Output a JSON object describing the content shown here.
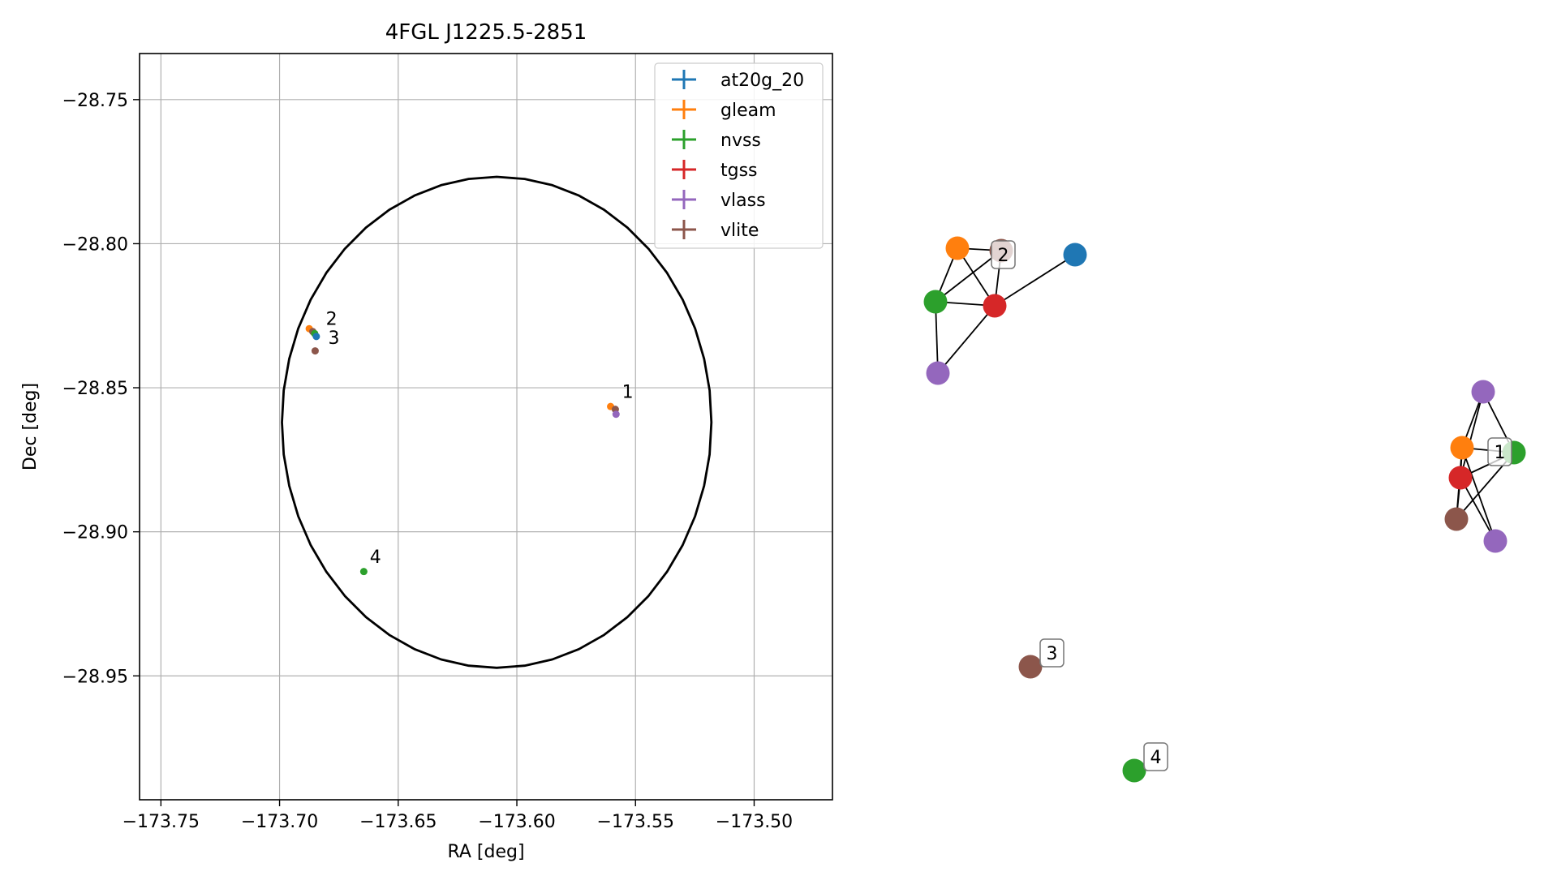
{
  "chart_data": [
    {
      "type": "scatter",
      "title": "4FGL J1225.5-2851",
      "xlabel": "RA [deg]",
      "ylabel": "Dec [deg]",
      "xlim": [
        -173.759,
        -173.467
      ],
      "ylim": [
        -28.993,
        -28.734
      ],
      "xticks": [
        -173.75,
        -173.7,
        -173.65,
        -173.6,
        -173.55,
        -173.5
      ],
      "xtick_labels": [
        "−173.75",
        "−173.70",
        "−173.65",
        "−173.60",
        "−173.55",
        "−173.50"
      ],
      "yticks": [
        -28.75,
        -28.8,
        -28.85,
        -28.9,
        -28.95
      ],
      "ytick_labels": [
        "−28.75",
        "−28.80",
        "−28.85",
        "−28.90",
        "−28.95"
      ],
      "grid": true,
      "legend_position": "top-right",
      "legend_items": [
        {
          "name": "at20g_20",
          "color": "#1f77b4"
        },
        {
          "name": "gleam",
          "color": "#ff7f0e"
        },
        {
          "name": "nvss",
          "color": "#2ca02c"
        },
        {
          "name": "tgss",
          "color": "#d62728"
        },
        {
          "name": "vlass",
          "color": "#9467bd"
        },
        {
          "name": "vlite",
          "color": "#8c564b"
        }
      ],
      "ellipse": {
        "center_ra": -173.6085,
        "center_dec": -28.862,
        "ra_semi_axis": 0.0905,
        "dec_semi_axis": 0.0852,
        "color": "#000000"
      },
      "points": [
        {
          "catalog": "gleam",
          "ra": -173.5605,
          "dec": -28.8565,
          "color": "#ff7f0e"
        },
        {
          "catalog": "vlite",
          "ra": -173.5585,
          "dec": -28.8575,
          "color": "#8c564b"
        },
        {
          "catalog": "vlass",
          "ra": -173.5582,
          "dec": -28.8592,
          "color": "#9467bd"
        },
        {
          "catalog": "gleam",
          "ra": -173.6875,
          "dec": -28.8295,
          "color": "#ff7f0e"
        },
        {
          "catalog": "vlite",
          "ra": -173.686,
          "dec": -28.8305,
          "color": "#8c564b"
        },
        {
          "catalog": "nvss",
          "ra": -173.6852,
          "dec": -28.8312,
          "color": "#2ca02c"
        },
        {
          "catalog": "at20g_20",
          "ra": -173.6845,
          "dec": -28.8322,
          "color": "#1f77b4"
        },
        {
          "catalog": "vlite",
          "ra": -173.685,
          "dec": -28.8372,
          "color": "#8c564b"
        },
        {
          "catalog": "nvss",
          "ra": -173.6645,
          "dec": -28.9138,
          "color": "#2ca02c"
        }
      ],
      "annotations": [
        {
          "text": "1",
          "ra": -173.5557,
          "dec": -28.8535
        },
        {
          "text": "2",
          "ra": -173.6805,
          "dec": -28.8282
        },
        {
          "text": "3",
          "ra": -173.6795,
          "dec": -28.8348
        },
        {
          "text": "4",
          "ra": -173.662,
          "dec": -28.9108
        }
      ]
    },
    {
      "type": "network",
      "nodes": [
        {
          "id": "g2",
          "catalog": "gleam",
          "color": "#ff7f0e"
        },
        {
          "id": "v2",
          "catalog": "vlite",
          "color": "#8c564b"
        },
        {
          "id": "a2",
          "catalog": "at20g_20",
          "color": "#1f77b4"
        },
        {
          "id": "n2",
          "catalog": "nvss",
          "color": "#2ca02c"
        },
        {
          "id": "t2",
          "catalog": "tgss",
          "color": "#d62728"
        },
        {
          "id": "l2",
          "catalog": "vlass",
          "color": "#9467bd"
        },
        {
          "id": "l1",
          "catalog": "vlass",
          "color": "#9467bd"
        },
        {
          "id": "g1",
          "catalog": "gleam",
          "color": "#ff7f0e"
        },
        {
          "id": "n1",
          "catalog": "nvss",
          "color": "#2ca02c"
        },
        {
          "id": "t1",
          "catalog": "tgss",
          "color": "#d62728"
        },
        {
          "id": "v1",
          "catalog": "vlite",
          "color": "#8c564b"
        },
        {
          "id": "l1b",
          "catalog": "vlass",
          "color": "#9467bd"
        },
        {
          "id": "v3",
          "catalog": "vlite",
          "color": "#8c564b"
        },
        {
          "id": "n4",
          "catalog": "nvss",
          "color": "#2ca02c"
        }
      ],
      "edges": [
        [
          "g2",
          "n2"
        ],
        [
          "g2",
          "t2"
        ],
        [
          "g2",
          "v2"
        ],
        [
          "v2",
          "n2"
        ],
        [
          "v2",
          "t2"
        ],
        [
          "n2",
          "t2"
        ],
        [
          "n2",
          "l2"
        ],
        [
          "t2",
          "l2"
        ],
        [
          "t2",
          "a2"
        ],
        [
          "l1",
          "g1"
        ],
        [
          "l1",
          "t1"
        ],
        [
          "l1",
          "n1"
        ],
        [
          "g1",
          "n1"
        ],
        [
          "g1",
          "t1"
        ],
        [
          "g1",
          "v1"
        ],
        [
          "g1",
          "l1b"
        ],
        [
          "t1",
          "v1"
        ],
        [
          "t1",
          "l1b"
        ],
        [
          "t1",
          "n1"
        ],
        [
          "n1",
          "v1"
        ]
      ],
      "labels": [
        {
          "text": "2",
          "near": "v2"
        },
        {
          "text": "1",
          "near": "g1"
        },
        {
          "text": "3",
          "near": "v3"
        },
        {
          "text": "4",
          "near": "n4"
        }
      ]
    }
  ]
}
